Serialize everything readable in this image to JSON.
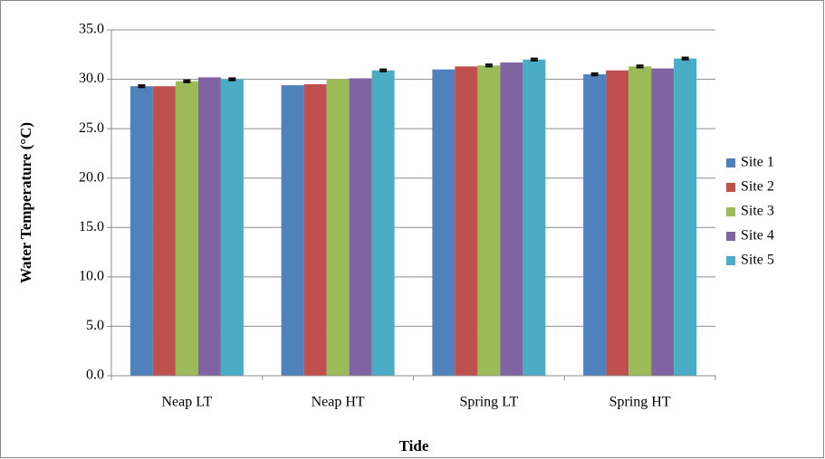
{
  "chart_data": {
    "type": "bar",
    "x_label": "Tide",
    "y_label": "Water Temperature (°C)",
    "categories": [
      "Neap LT",
      "Neap HT",
      "Spring LT",
      "Spring HT"
    ],
    "series": [
      {
        "name": "Site 1",
        "color": "#4f81bd",
        "values": [
          29.3,
          29.4,
          31.0,
          30.5
        ],
        "errors": [
          0.1,
          null,
          null,
          0.1
        ]
      },
      {
        "name": "Site 2",
        "color": "#c0504d",
        "values": [
          29.3,
          29.5,
          31.3,
          30.9
        ],
        "errors": [
          null,
          null,
          null,
          null
        ]
      },
      {
        "name": "Site 3",
        "color": "#9bbb59",
        "values": [
          29.8,
          30.0,
          31.4,
          31.3
        ],
        "errors": [
          0.1,
          null,
          0.1,
          0.1
        ]
      },
      {
        "name": "Site 4",
        "color": "#8064a2",
        "values": [
          30.2,
          30.1,
          31.7,
          31.1
        ],
        "errors": [
          null,
          null,
          null,
          null
        ]
      },
      {
        "name": "Site 5",
        "color": "#4bacc6",
        "values": [
          30.0,
          30.9,
          32.0,
          32.1
        ],
        "errors": [
          0.1,
          0.1,
          0.1,
          0.1
        ]
      }
    ],
    "ylim": [
      0,
      35
    ],
    "yticks": [
      {
        "value": 0,
        "label": "0.0"
      },
      {
        "value": 5,
        "label": "5.0"
      },
      {
        "value": 10,
        "label": "10.0"
      },
      {
        "value": 15,
        "label": "15.0"
      },
      {
        "value": 20,
        "label": "20.0"
      },
      {
        "value": 25,
        "label": "25.0"
      },
      {
        "value": 30,
        "label": "30.0"
      },
      {
        "value": 35,
        "label": "35.0"
      }
    ],
    "grid": true,
    "legend": "right"
  }
}
